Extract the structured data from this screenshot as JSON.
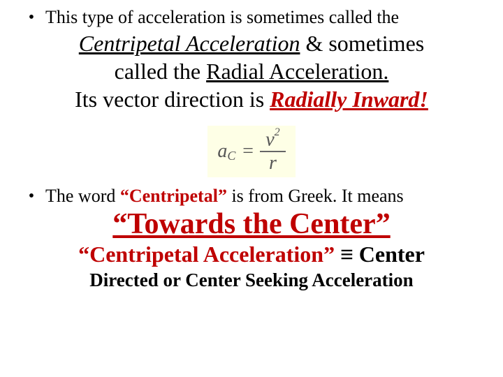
{
  "bullet1": {
    "lead": "This type of acceleration is sometimes called the",
    "centripetal": "Centripetal Acceleration",
    "amp_sometimes": " & sometimes",
    "called_the": "called the ",
    "radial": "Radial Acceleration.",
    "vector_line_pre": "Its vector direction is ",
    "radially_inward": "Radially Inward!"
  },
  "formula": {
    "lhs_a": "a",
    "lhs_sub": "C",
    "eq": "=",
    "num_v": "v",
    "num_exp": "2",
    "den": "r",
    "bg_color": "#feffe6",
    "text_color": "#555555"
  },
  "bullet2": {
    "lead_pre": "The word ",
    "centripetal_q": "“Centripetal”",
    "lead_post": " is from Greek. It means",
    "towards": "“Towards the Center”",
    "ca_phrase": "“Centripetal Acceleration” ",
    "equiv": "≡",
    "center": " Center",
    "directed": "Directed or Center  Seeking Acceleration"
  },
  "colors": {
    "red": "#bf0000",
    "black": "#000000"
  }
}
